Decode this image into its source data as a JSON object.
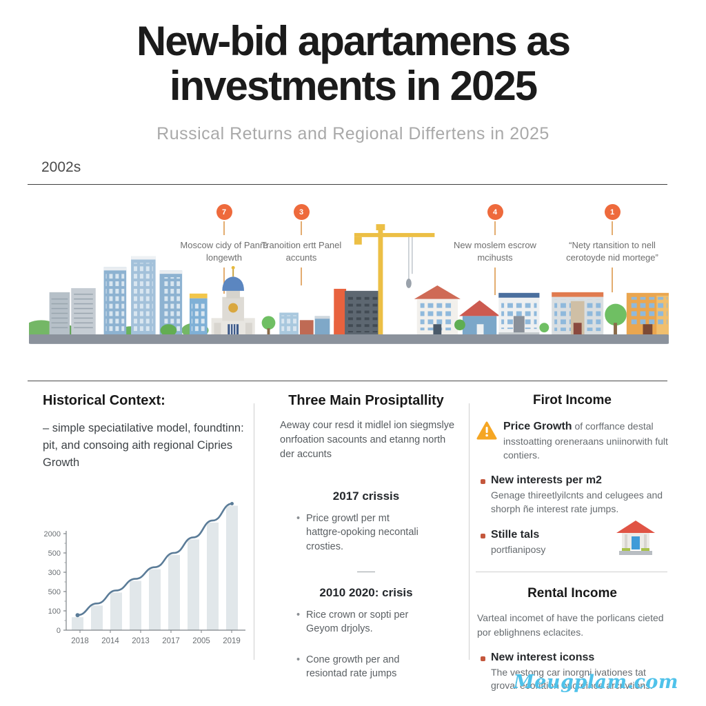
{
  "header": {
    "title_line1": "New-bid apartamens as",
    "title_line2": "investments in 2025",
    "subtitle": "Russical Returns and Regional Differtens in 2025"
  },
  "timeline": {
    "era_label": "2002s",
    "markers": [
      {
        "number": "7",
        "label": "Moscow cidy of Panre longewth"
      },
      {
        "number": "3",
        "label": "Tranoition ertt Panel accunts"
      },
      {
        "number": "4",
        "label": "New moslem escrow mcihusts"
      },
      {
        "number": "1",
        "label": "“Nety rtansition to nell cerotoyde nid mortege”"
      }
    ]
  },
  "columns": {
    "historical": {
      "heading": "Historical Context:",
      "body": "– simple speciatilative model, foundtinn: pit, and consoing aith regional Cipries Growth"
    },
    "main": {
      "heading": "Three Main Prosiptallity",
      "intro": "Aeway cour resd it midlel ion siegmslye onrfoation sacounts and etanng north der accunts",
      "crisis_2017": {
        "heading": "2017 crissis",
        "bullets": [
          "Price growtl per mt hattgre-opoking necontali crosties."
        ]
      },
      "crisis_2010": {
        "heading": "2010 2020: crisis",
        "bullets": [
          "Rice crown or sopti per Geyom drjolys.",
          "Cone growth per and resiontad rate jumps"
        ]
      }
    },
    "income": {
      "heading": "Firot Income",
      "price_growth": {
        "lead": "Price Growth",
        "body": "of corffance destal insstoatting oreneraans uniinorwith fult contiers."
      },
      "new_interests": {
        "lead": "New interests per m2",
        "body": "Genage thireetlyilcnts and celugees and shorph ñe interest rate jumps."
      },
      "stille": {
        "lead": "Stille tals",
        "body": "portfianiposy"
      },
      "rental": {
        "heading": "Rental Income",
        "body": "Varteal incomet of have the porlicans cieted por eblighnens eclacites.",
        "bullet": {
          "lead": "New interest iconss",
          "body": "The vestong car inorgni ivationes tat groval ecorittion oncreince arcnvtions."
        }
      }
    }
  },
  "chart_data": {
    "type": "bar+line",
    "title": "",
    "x_ticks": [
      "2018",
      "2014",
      "2013",
      "2017",
      "2005",
      "2019"
    ],
    "y_ticks_top_to_bottom": [
      "2000",
      "500",
      "300",
      "500",
      "100",
      "0"
    ],
    "bars": [
      10,
      19,
      29,
      38,
      47,
      58,
      70,
      83,
      96
    ],
    "bars_note": "9 light-gray bars of steadily increasing height with a smooth rising curve over them; values are relative (0-100) since axis labels are decorative",
    "bar_color": "#e1e7ea",
    "line_color": "#5b7c98",
    "grid": false,
    "legend": null
  },
  "icons": {
    "warning": "warning-triangle-icon",
    "house": "house-icon",
    "skyline": "city-skyline-illustration"
  },
  "palette": {
    "accent_orange": "#ee6a3c",
    "connector_tan": "#e3ac6f",
    "road_gray": "#8b929c",
    "warning_yellow": "#f5a623",
    "bullet_red": "#c4573c",
    "watermark_blue": "#4fc2ea"
  },
  "footer": {
    "watermark": "Meugplam.com"
  }
}
